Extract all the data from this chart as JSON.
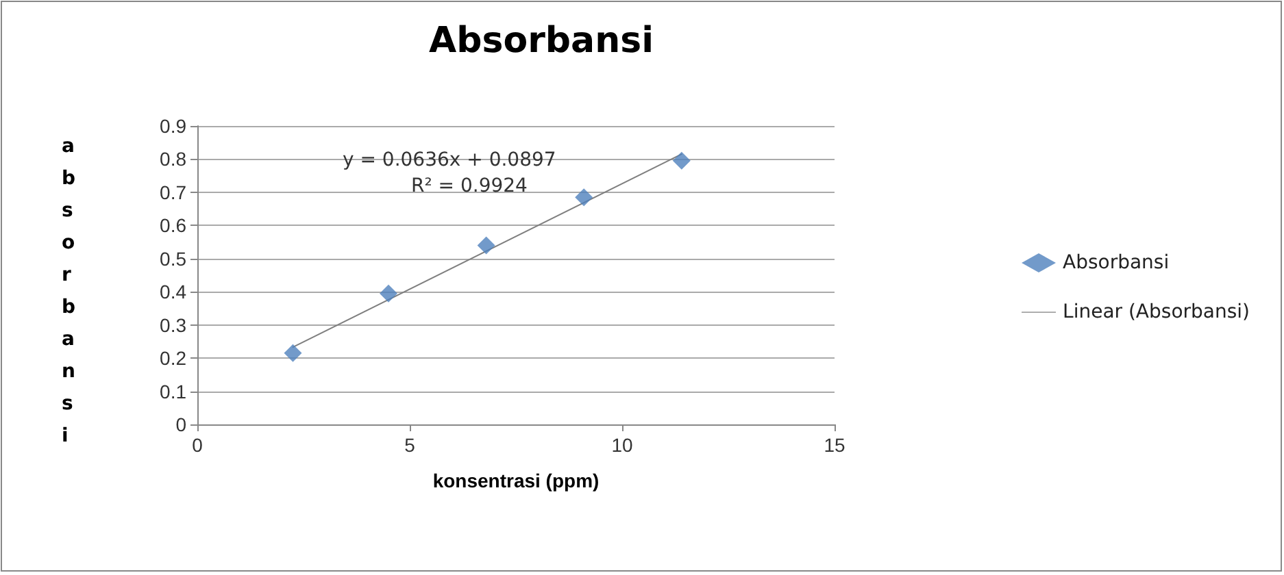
{
  "chart_data": {
    "type": "scatter",
    "title": "Absorbansi",
    "xlabel": "konsentrasi (ppm)",
    "ylabel": "absorbansi",
    "annotations": [
      "y = 0.0636x + 0.0897",
      "R² = 0.9924"
    ],
    "series": [
      {
        "name": "Absorbansi",
        "color": "#4f81bd",
        "marker": "diamond",
        "x": [
          2.25,
          4.5,
          6.8,
          9.1,
          11.4
        ],
        "values": [
          0.215,
          0.395,
          0.54,
          0.685,
          0.795
        ]
      },
      {
        "name": "Linear (Absorbansi)",
        "type": "line",
        "color": "#7f7f7f",
        "marker": "none",
        "x": [
          2.25,
          11.4
        ],
        "values": [
          0.233,
          0.815
        ]
      }
    ],
    "xlim": [
      0,
      15
    ],
    "xticks": [
      0,
      5,
      10,
      15
    ],
    "ylim": [
      0,
      0.9
    ],
    "yticks": [
      0,
      0.1,
      0.2,
      0.3,
      0.4,
      0.5,
      0.6,
      0.7,
      0.8,
      0.9
    ],
    "grid": "y",
    "legend": "right"
  }
}
